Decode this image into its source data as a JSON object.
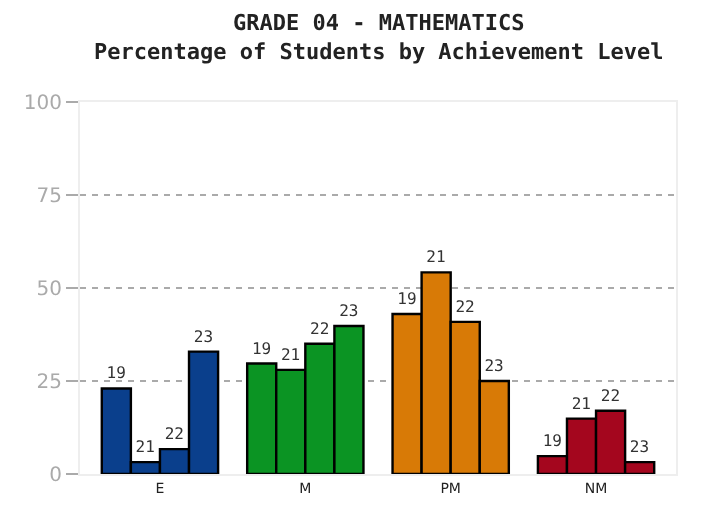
{
  "chart_data": {
    "type": "bar",
    "title": "GRADE 04 - MATHEMATICS",
    "subtitle": "Percentage of Students by Achievement Level",
    "categories": [
      "E",
      "M",
      "PM",
      "NM"
    ],
    "series": [
      {
        "name": "19",
        "colors": [
          "#0a3f8c",
          "#0b9423",
          "#d87a06",
          "#a4061e"
        ],
        "values": [
          23,
          29.7,
          43,
          4.8
        ]
      },
      {
        "name": "21",
        "colors": [
          "#0a3f8c",
          "#0b9423",
          "#d87a06",
          "#a4061e"
        ],
        "values": [
          3.2,
          28,
          54.2,
          14.9
        ]
      },
      {
        "name": "22",
        "colors": [
          "#0a3f8c",
          "#0b9423",
          "#d87a06",
          "#a4061e"
        ],
        "values": [
          6.7,
          35,
          40.9,
          17
        ]
      },
      {
        "name": "23",
        "colors": [
          "#0a3f8c",
          "#0b9423",
          "#d87a06",
          "#a4061e"
        ],
        "values": [
          32.9,
          39.8,
          25,
          3.2
        ]
      }
    ],
    "ylim": [
      0,
      100
    ],
    "yticks": [
      0,
      25,
      50,
      75,
      100
    ],
    "grid": "y",
    "legend": false
  }
}
